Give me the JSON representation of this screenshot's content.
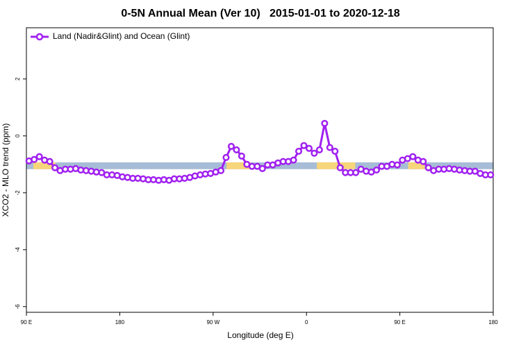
{
  "chart_data": {
    "type": "line",
    "title": "0-5N Annual Mean (Ver 10)   2015-01-01 to 2020-12-18",
    "x_label": "Longitude (deg E)",
    "y_label": "XCO2 - MLO trend (ppm)",
    "xlim": [
      90,
      540
    ],
    "ylim": [
      -6.2,
      3.8
    ],
    "xticks": [
      {
        "value": 90,
        "label": "90 E"
      },
      180,
      {
        "value": 270,
        "label": "90 W"
      },
      {
        "value": 360,
        "label": "0"
      },
      {
        "value": 450,
        "label": "90 E"
      },
      {
        "value": 540,
        "label": "180"
      }
    ],
    "yticks": [
      2,
      0,
      -2,
      -4,
      -6
    ],
    "legend": "top-left",
    "surface_band": {
      "ylim": [
        -1.17,
        -0.93
      ],
      "ocean_color": "#a7bcd6",
      "land_color": "#f7d57a",
      "land": [
        [
          96.7,
          118
        ],
        [
          283,
          306
        ],
        [
          370,
          407
        ],
        [
          458,
          474
        ]
      ]
    },
    "x": [
      92.5,
      97.5,
      102.5,
      107.5,
      112.5,
      117.5,
      122.5,
      127.5,
      132.5,
      137.5,
      142.5,
      147.5,
      152.5,
      157.5,
      162.5,
      167.5,
      172.5,
      177.5,
      182.5,
      187.5,
      192.5,
      197.5,
      202.5,
      207.5,
      212.5,
      217.5,
      222.5,
      227.5,
      232.5,
      237.5,
      242.5,
      247.5,
      252.5,
      257.5,
      262.5,
      267.5,
      272.5,
      277.5,
      282.5,
      287.5,
      292.5,
      297.5,
      302.5,
      307.5,
      312.5,
      317.5,
      322.5,
      327.5,
      332.5,
      337.5,
      342.5,
      347.5,
      352.5,
      357.5,
      362.5,
      367.5,
      372.5,
      377.5,
      382.5,
      387.5,
      392.5,
      397.5,
      402.5,
      407.5,
      412.5,
      417.5,
      422.5,
      427.5,
      432.5,
      437.5,
      442.5,
      447.5,
      452.5,
      457.5,
      462.5,
      467.5,
      472.5,
      477.5,
      482.5,
      487.5,
      492.5,
      497.5,
      502.5,
      507.5,
      512.5,
      517.5,
      522.5,
      527.5,
      532.5,
      537.5
    ],
    "series": [
      {
        "name": "Land (Nadir&Glint) and Ocean (Glint)",
        "color": "#a020f0",
        "values": [
          -0.88,
          -0.83,
          -0.73,
          -0.85,
          -0.9,
          -1.12,
          -1.22,
          -1.17,
          -1.17,
          -1.15,
          -1.2,
          -1.22,
          -1.24,
          -1.27,
          -1.29,
          -1.37,
          -1.37,
          -1.39,
          -1.44,
          -1.46,
          -1.49,
          -1.49,
          -1.51,
          -1.54,
          -1.54,
          -1.56,
          -1.54,
          -1.56,
          -1.51,
          -1.51,
          -1.49,
          -1.46,
          -1.41,
          -1.37,
          -1.34,
          -1.32,
          -1.27,
          -1.22,
          -0.76,
          -0.37,
          -0.49,
          -0.71,
          -1.0,
          -1.07,
          -1.07,
          -1.15,
          -1.02,
          -1.02,
          -0.95,
          -0.9,
          -0.9,
          -0.85,
          -0.54,
          -0.34,
          -0.44,
          -0.61,
          -0.49,
          0.44,
          -0.41,
          -0.54,
          -1.12,
          -1.29,
          -1.29,
          -1.29,
          -1.17,
          -1.24,
          -1.27,
          -1.2,
          -1.07,
          -1.07,
          -1.0,
          -1.02,
          -0.85,
          -0.8,
          -0.73,
          -0.85,
          -0.9,
          -1.12,
          -1.22,
          -1.17,
          -1.17,
          -1.15,
          -1.17,
          -1.2,
          -1.22,
          -1.24,
          -1.24,
          -1.32,
          -1.37,
          -1.37
        ]
      }
    ]
  }
}
